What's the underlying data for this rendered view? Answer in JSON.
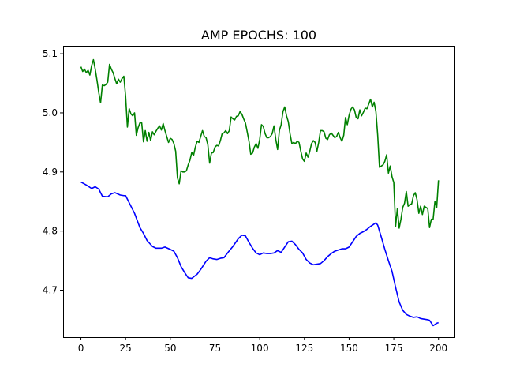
{
  "chart_data": {
    "type": "line",
    "title": "AMP EPOCHS: 100",
    "xlabel": "",
    "ylabel": "",
    "xlim": [
      -9.95,
      208.95
    ],
    "ylim": [
      4.6205,
      5.1135
    ],
    "xticks": [
      0,
      25,
      50,
      75,
      100,
      125,
      150,
      175,
      200
    ],
    "xtick_labels": [
      "0",
      "25",
      "50",
      "75",
      "100",
      "125",
      "150",
      "175",
      "200"
    ],
    "yticks": [
      4.7,
      4.8,
      4.9,
      5.0,
      5.1
    ],
    "ytick_labels": [
      "4.7",
      "4.8",
      "4.9",
      "5.0",
      "5.1"
    ],
    "grid": false,
    "legend": false,
    "series": [
      {
        "color": "#008000",
        "anchors": [
          [
            0,
            5.078
          ],
          [
            1,
            5.07
          ],
          [
            2,
            5.074
          ],
          [
            3,
            5.068
          ],
          [
            4,
            5.072
          ],
          [
            5,
            5.064
          ],
          [
            6,
            5.08
          ],
          [
            7,
            5.09
          ],
          [
            8,
            5.074
          ],
          [
            9,
            5.055
          ],
          [
            10,
            5.034
          ],
          [
            11,
            5.017
          ],
          [
            12,
            5.047
          ],
          [
            13,
            5.046
          ],
          [
            14,
            5.048
          ],
          [
            15,
            5.052
          ],
          [
            16,
            5.082
          ],
          [
            17,
            5.074
          ],
          [
            18,
            5.068
          ],
          [
            19,
            5.058
          ],
          [
            20,
            5.049
          ],
          [
            21,
            5.057
          ],
          [
            22,
            5.052
          ],
          [
            23,
            5.058
          ],
          [
            24,
            5.062
          ],
          [
            25,
            5.028
          ],
          [
            26,
            4.976
          ],
          [
            27,
            5.007
          ],
          [
            28,
            4.998
          ],
          [
            29,
            4.995
          ],
          [
            30,
            5.0
          ],
          [
            31,
            4.962
          ],
          [
            32,
            4.975
          ],
          [
            33,
            4.983
          ],
          [
            34,
            4.983
          ],
          [
            35,
            4.951
          ],
          [
            36,
            4.97
          ],
          [
            37,
            4.952
          ],
          [
            38,
            4.967
          ],
          [
            39,
            4.953
          ],
          [
            40,
            4.968
          ],
          [
            41,
            4.963
          ],
          [
            42,
            4.969
          ],
          [
            43,
            4.974
          ],
          [
            44,
            4.978
          ],
          [
            45,
            4.971
          ],
          [
            46,
            4.982
          ],
          [
            47,
            4.97
          ],
          [
            48,
            4.96
          ],
          [
            49,
            4.95
          ],
          [
            50,
            4.957
          ],
          [
            51,
            4.955
          ],
          [
            52,
            4.948
          ],
          [
            53,
            4.935
          ],
          [
            54,
            4.89
          ],
          [
            55,
            4.88
          ],
          [
            56,
            4.902
          ],
          [
            57,
            4.9
          ],
          [
            58,
            4.9
          ],
          [
            59,
            4.902
          ],
          [
            60,
            4.912
          ],
          [
            61,
            4.92
          ],
          [
            62,
            4.933
          ],
          [
            63,
            4.928
          ],
          [
            64,
            4.942
          ],
          [
            65,
            4.952
          ],
          [
            66,
            4.95
          ],
          [
            67,
            4.96
          ],
          [
            68,
            4.97
          ],
          [
            69,
            4.96
          ],
          [
            70,
            4.958
          ],
          [
            71,
            4.946
          ],
          [
            72,
            4.915
          ],
          [
            73,
            4.932
          ],
          [
            74,
            4.933
          ],
          [
            75,
            4.942
          ],
          [
            76,
            4.945
          ],
          [
            77,
            4.944
          ],
          [
            78,
            4.953
          ],
          [
            79,
            4.965
          ],
          [
            80,
            4.966
          ],
          [
            81,
            4.97
          ],
          [
            82,
            4.965
          ],
          [
            83,
            4.97
          ],
          [
            84,
            4.993
          ],
          [
            85,
            4.99
          ],
          [
            86,
            4.988
          ],
          [
            87,
            4.994
          ],
          [
            88,
            4.995
          ],
          [
            89,
            5.002
          ],
          [
            90,
            4.998
          ],
          [
            91,
            4.99
          ],
          [
            92,
            4.983
          ],
          [
            93,
            4.968
          ],
          [
            94,
            4.952
          ],
          [
            95,
            4.93
          ],
          [
            96,
            4.932
          ],
          [
            97,
            4.942
          ],
          [
            98,
            4.948
          ],
          [
            99,
            4.94
          ],
          [
            100,
            4.955
          ],
          [
            101,
            4.98
          ],
          [
            102,
            4.977
          ],
          [
            103,
            4.965
          ],
          [
            104,
            4.958
          ],
          [
            105,
            4.958
          ],
          [
            106,
            4.96
          ],
          [
            107,
            4.965
          ],
          [
            108,
            4.978
          ],
          [
            109,
            4.955
          ],
          [
            110,
            4.938
          ],
          [
            111,
            4.97
          ],
          [
            112,
            4.98
          ],
          [
            113,
            5.002
          ],
          [
            114,
            5.01
          ],
          [
            115,
            4.995
          ],
          [
            116,
            4.985
          ],
          [
            117,
            4.964
          ],
          [
            118,
            4.948
          ],
          [
            119,
            4.95
          ],
          [
            120,
            4.948
          ],
          [
            121,
            4.952
          ],
          [
            122,
            4.95
          ],
          [
            123,
            4.935
          ],
          [
            124,
            4.922
          ],
          [
            125,
            4.918
          ],
          [
            126,
            4.932
          ],
          [
            127,
            4.925
          ],
          [
            128,
            4.935
          ],
          [
            129,
            4.948
          ],
          [
            130,
            4.953
          ],
          [
            131,
            4.95
          ],
          [
            132,
            4.935
          ],
          [
            133,
            4.95
          ],
          [
            134,
            4.97
          ],
          [
            135,
            4.97
          ],
          [
            136,
            4.968
          ],
          [
            137,
            4.957
          ],
          [
            138,
            4.955
          ],
          [
            139,
            4.963
          ],
          [
            140,
            4.966
          ],
          [
            141,
            4.962
          ],
          [
            142,
            4.958
          ],
          [
            143,
            4.96
          ],
          [
            144,
            4.967
          ],
          [
            145,
            4.958
          ],
          [
            146,
            4.952
          ],
          [
            147,
            4.962
          ],
          [
            148,
            4.992
          ],
          [
            149,
            4.98
          ],
          [
            150,
            4.996
          ],
          [
            151,
            5.006
          ],
          [
            152,
            5.01
          ],
          [
            153,
            5.005
          ],
          [
            154,
            4.992
          ],
          [
            155,
            4.99
          ],
          [
            156,
            5.005
          ],
          [
            157,
            4.995
          ],
          [
            158,
            5.001
          ],
          [
            159,
            5.008
          ],
          [
            160,
            5.007
          ],
          [
            161,
            5.015
          ],
          [
            162,
            5.023
          ],
          [
            163,
            5.01
          ],
          [
            164,
            5.018
          ],
          [
            165,
            5.002
          ],
          [
            166,
            4.962
          ],
          [
            167,
            4.908
          ],
          [
            168,
            4.91
          ],
          [
            169,
            4.912
          ],
          [
            170,
            4.918
          ],
          [
            171,
            4.929
          ],
          [
            172,
            4.898
          ],
          [
            173,
            4.91
          ],
          [
            174,
            4.892
          ],
          [
            175,
            4.882
          ],
          [
            176,
            4.808
          ],
          [
            177,
            4.838
          ],
          [
            178,
            4.805
          ],
          [
            179,
            4.82
          ],
          [
            180,
            4.84
          ],
          [
            181,
            4.847
          ],
          [
            182,
            4.867
          ],
          [
            183,
            4.842
          ],
          [
            184,
            4.845
          ],
          [
            185,
            4.846
          ],
          [
            186,
            4.86
          ],
          [
            187,
            4.865
          ],
          [
            188,
            4.853
          ],
          [
            189,
            4.83
          ],
          [
            190,
            4.842
          ],
          [
            191,
            4.828
          ],
          [
            192,
            4.842
          ],
          [
            193,
            4.84
          ],
          [
            194,
            4.838
          ],
          [
            195,
            4.806
          ],
          [
            196,
            4.82
          ],
          [
            197,
            4.82
          ],
          [
            198,
            4.85
          ],
          [
            199,
            4.84
          ],
          [
            200,
            4.886
          ]
        ]
      },
      {
        "color": "#0000ff",
        "anchors": [
          [
            0,
            4.883
          ],
          [
            3,
            4.878
          ],
          [
            6,
            4.872
          ],
          [
            8,
            4.875
          ],
          [
            10,
            4.871
          ],
          [
            12,
            4.859
          ],
          [
            15,
            4.858
          ],
          [
            17,
            4.863
          ],
          [
            19,
            4.865
          ],
          [
            22,
            4.861
          ],
          [
            24,
            4.86
          ],
          [
            25,
            4.86
          ],
          [
            27,
            4.848
          ],
          [
            30,
            4.83
          ],
          [
            33,
            4.806
          ],
          [
            35,
            4.796
          ],
          [
            37,
            4.784
          ],
          [
            40,
            4.774
          ],
          [
            42,
            4.771
          ],
          [
            45,
            4.771
          ],
          [
            47,
            4.773
          ],
          [
            50,
            4.769
          ],
          [
            52,
            4.766
          ],
          [
            54,
            4.755
          ],
          [
            56,
            4.74
          ],
          [
            58,
            4.73
          ],
          [
            60,
            4.721
          ],
          [
            62,
            4.72
          ],
          [
            65,
            4.727
          ],
          [
            67,
            4.735
          ],
          [
            70,
            4.749
          ],
          [
            72,
            4.755
          ],
          [
            74,
            4.753
          ],
          [
            76,
            4.752
          ],
          [
            78,
            4.754
          ],
          [
            80,
            4.755
          ],
          [
            82,
            4.763
          ],
          [
            85,
            4.774
          ],
          [
            88,
            4.787
          ],
          [
            90,
            4.793
          ],
          [
            92,
            4.792
          ],
          [
            94,
            4.781
          ],
          [
            96,
            4.771
          ],
          [
            98,
            4.763
          ],
          [
            100,
            4.76
          ],
          [
            102,
            4.763
          ],
          [
            104,
            4.762
          ],
          [
            106,
            4.762
          ],
          [
            108,
            4.763
          ],
          [
            110,
            4.767
          ],
          [
            112,
            4.764
          ],
          [
            114,
            4.773
          ],
          [
            116,
            4.782
          ],
          [
            118,
            4.783
          ],
          [
            120,
            4.777
          ],
          [
            122,
            4.769
          ],
          [
            124,
            4.763
          ],
          [
            126,
            4.752
          ],
          [
            128,
            4.746
          ],
          [
            130,
            4.743
          ],
          [
            132,
            4.744
          ],
          [
            134,
            4.745
          ],
          [
            136,
            4.75
          ],
          [
            138,
            4.757
          ],
          [
            140,
            4.762
          ],
          [
            142,
            4.766
          ],
          [
            144,
            4.768
          ],
          [
            146,
            4.77
          ],
          [
            148,
            4.77
          ],
          [
            150,
            4.773
          ],
          [
            152,
            4.782
          ],
          [
            154,
            4.791
          ],
          [
            156,
            4.796
          ],
          [
            158,
            4.799
          ],
          [
            160,
            4.803
          ],
          [
            162,
            4.808
          ],
          [
            164,
            4.812
          ],
          [
            165,
            4.814
          ],
          [
            166,
            4.81
          ],
          [
            168,
            4.79
          ],
          [
            170,
            4.769
          ],
          [
            172,
            4.75
          ],
          [
            174,
            4.732
          ],
          [
            176,
            4.705
          ],
          [
            178,
            4.68
          ],
          [
            180,
            4.666
          ],
          [
            182,
            4.659
          ],
          [
            184,
            4.656
          ],
          [
            186,
            4.654
          ],
          [
            188,
            4.655
          ],
          [
            190,
            4.652
          ],
          [
            192,
            4.651
          ],
          [
            194,
            4.65
          ],
          [
            195,
            4.649
          ],
          [
            197,
            4.64
          ],
          [
            199,
            4.644
          ],
          [
            200,
            4.645
          ]
        ]
      }
    ]
  }
}
